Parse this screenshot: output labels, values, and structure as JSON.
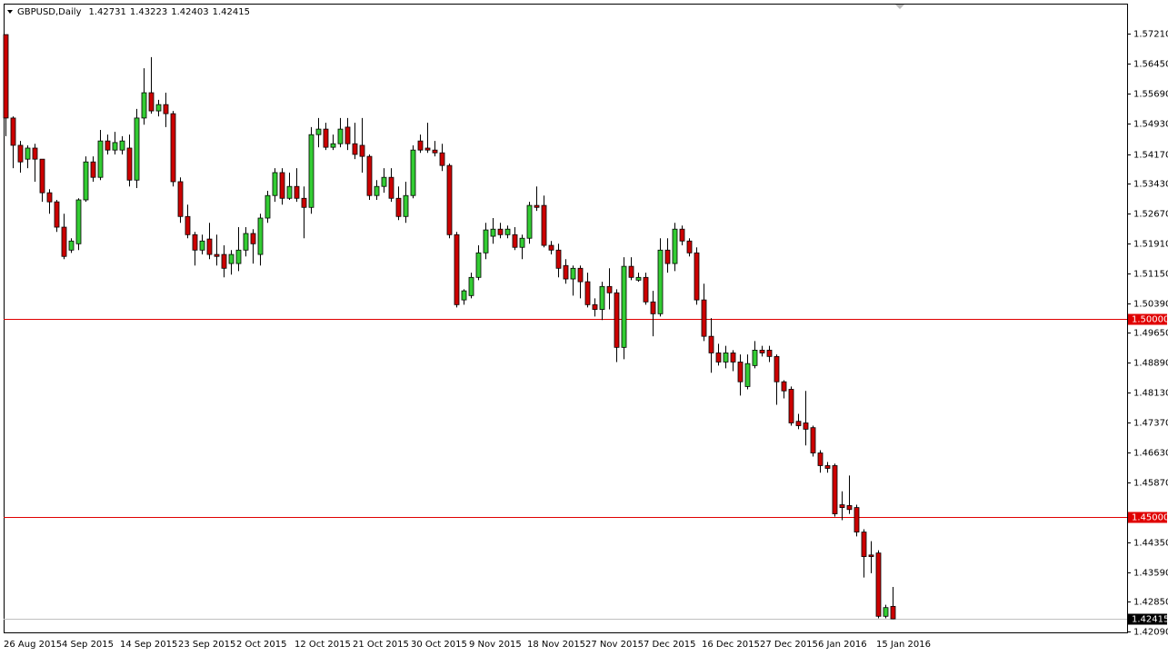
{
  "chart_data": {
    "type": "candlestick",
    "title": "GBPUSD,Daily",
    "categories": [
      "26 Aug 2015",
      null,
      null,
      null,
      null,
      null,
      null,
      null,
      "4 Sep 2015",
      null,
      null,
      null,
      null,
      null,
      null,
      null,
      "14 Sep 2015",
      null,
      null,
      null,
      null,
      null,
      null,
      null,
      "23 Sep 2015",
      null,
      null,
      null,
      null,
      null,
      null,
      null,
      "2 Oct 2015",
      null,
      null,
      null,
      null,
      null,
      null,
      null,
      "12 Oct 2015",
      null,
      null,
      null,
      null,
      null,
      null,
      null,
      "21 Oct 2015",
      null,
      null,
      null,
      null,
      null,
      null,
      null,
      "30 Oct 2015",
      null,
      null,
      null,
      null,
      null,
      null,
      null,
      "9 Nov 2015",
      null,
      null,
      null,
      null,
      null,
      null,
      null,
      "18 Nov 2015",
      null,
      null,
      null,
      null,
      null,
      null,
      null,
      "27 Nov 2015",
      null,
      null,
      null,
      null,
      null,
      null,
      null,
      "7 Dec 2015",
      null,
      null,
      null,
      null,
      null,
      null,
      null,
      "16 Dec 2015",
      null,
      null,
      null,
      null,
      null,
      null,
      null,
      "27 Dec 2015",
      null,
      null,
      null,
      null,
      null,
      null,
      null,
      "6 Jan 2016",
      null,
      null,
      null,
      null,
      null,
      null,
      null,
      "15 Jan 2016",
      null,
      null
    ],
    "open": [
      1.5719,
      1.5508,
      1.5439,
      1.5404,
      1.5432,
      1.5404,
      1.5319,
      1.5296,
      1.5232,
      1.5174,
      1.519,
      1.5301,
      1.5397,
      1.5358,
      1.545,
      1.5427,
      1.5427,
      1.5432,
      1.5351,
      1.5508,
      1.5572,
      1.5526,
      1.5542,
      1.5519,
      1.5347,
      1.5259,
      1.5213,
      1.5174,
      1.5202,
      1.5163,
      1.5163,
      1.514,
      1.514,
      1.5174,
      1.5216,
      1.5163,
      1.5255,
      1.5312,
      1.537,
      1.5305,
      1.5335,
      1.5305,
      1.5282,
      1.5466,
      1.548,
      1.5434,
      1.5443,
      1.5485,
      1.5443,
      1.5439,
      1.5411,
      1.5312,
      1.5335,
      1.5358,
      1.5305,
      1.5259,
      1.5312,
      1.545,
      1.5432,
      1.5427,
      1.542,
      1.5388,
      1.5213,
      1.5048,
      1.5059,
      1.5105,
      1.5167,
      1.5209,
      1.5227,
      1.5213,
      1.5213,
      1.5181,
      1.5204,
      1.5287,
      1.5287,
      1.5186,
      1.5174,
      1.5135,
      1.5101,
      1.5128,
      1.5094,
      1.5036,
      1.5024,
      1.5082,
      1.5066,
      1.4928,
      1.5133,
      1.5098,
      1.5105,
      1.5043,
      1.5013,
      1.5174,
      1.514,
      1.5227,
      1.5197,
      1.5167,
      1.5048,
      1.4956,
      1.4914,
      1.4891,
      1.4914,
      1.4891,
      1.4829,
      1.4882,
      1.4921,
      1.4921,
      1.4905,
      1.4841,
      1.4822,
      1.4741,
      1.4737,
      1.4725,
      1.4661,
      1.4629,
      1.4629,
      1.453,
      1.4528,
      1.4523,
      1.4461,
      1.4403,
      1.4408,
      1.4248,
      1.42731
    ],
    "high": [
      1.5719,
      1.5512,
      1.545,
      1.5439,
      1.5443,
      1.5404,
      1.5328,
      1.5301,
      1.5266,
      1.5204,
      1.5305,
      1.5411,
      1.5411,
      1.5478,
      1.5466,
      1.5473,
      1.5462,
      1.5466,
      1.5531,
      1.5634,
      1.5662,
      1.5554,
      1.5572,
      1.5526,
      1.5358,
      1.5289,
      1.522,
      1.5213,
      1.5243,
      1.5213,
      1.5186,
      1.5174,
      1.5232,
      1.5232,
      1.5227,
      1.5266,
      1.5324,
      1.5381,
      1.5381,
      1.537,
      1.5381,
      1.5335,
      1.5485,
      1.5508,
      1.5496,
      1.5466,
      1.5508,
      1.5508,
      1.5496,
      1.5508,
      1.5416,
      1.5351,
      1.5381,
      1.5381,
      1.5335,
      1.5347,
      1.5439,
      1.5466,
      1.5496,
      1.545,
      1.5443,
      1.5393,
      1.522,
      1.5075,
      1.5117,
      1.5186,
      1.5243,
      1.5255,
      1.5243,
      1.5236,
      1.5232,
      1.5213,
      1.5296,
      1.5335,
      1.5312,
      1.5197,
      1.519,
      1.5151,
      1.5135,
      1.5135,
      1.5117,
      1.5052,
      1.5094,
      1.5128,
      1.5075,
      1.5156,
      1.5156,
      1.5117,
      1.5117,
      1.5071,
      1.5204,
      1.5204,
      1.5243,
      1.5236,
      1.5204,
      1.5181,
      1.5089,
      1.5002,
      1.4937,
      1.4932,
      1.4921,
      1.491,
      1.491,
      1.4944,
      1.4932,
      1.4932,
      1.491,
      1.4845,
      1.4829,
      1.476,
      1.4818,
      1.473,
      1.4668,
      1.4638,
      1.4634,
      1.4564,
      1.4604,
      1.453,
      1.4468,
      1.4438,
      1.4415,
      1.4277,
      1.43223
    ],
    "low": [
      1.5462,
      1.5381,
      1.537,
      1.5381,
      1.5347,
      1.5296,
      1.5266,
      1.522,
      1.5151,
      1.5167,
      1.5174,
      1.5296,
      1.5347,
      1.5351,
      1.5416,
      1.5416,
      1.5416,
      1.5335,
      1.5331,
      1.5491,
      1.5519,
      1.5512,
      1.5485,
      1.5335,
      1.5243,
      1.5204,
      1.5135,
      1.5163,
      1.5151,
      1.5135,
      1.5105,
      1.5112,
      1.5121,
      1.5158,
      1.514,
      1.5135,
      1.5243,
      1.5296,
      1.5289,
      1.5301,
      1.5296,
      1.5204,
      1.5266,
      1.5434,
      1.5427,
      1.5427,
      1.5434,
      1.5427,
      1.5404,
      1.537,
      1.5301,
      1.5301,
      1.5319,
      1.5296,
      1.525,
      1.5243,
      1.5305,
      1.542,
      1.542,
      1.5411,
      1.5374,
      1.5204,
      1.5029,
      1.5036,
      1.5052,
      1.5098,
      1.5151,
      1.519,
      1.5204,
      1.5204,
      1.5174,
      1.5151,
      1.519,
      1.5273,
      1.5181,
      1.5163,
      1.5105,
      1.5089,
      1.5059,
      1.5052,
      1.5029,
      1.5006,
      1.4997,
      1.5024,
      1.4891,
      1.4898,
      1.5098,
      1.5094,
      1.5036,
      1.4956,
      1.5006,
      1.5117,
      1.5121,
      1.5186,
      1.5158,
      1.5036,
      1.4944,
      1.4864,
      1.4882,
      1.4875,
      1.4868,
      1.4806,
      1.4822,
      1.4875,
      1.4905,
      1.4891,
      1.4783,
      1.4799,
      1.473,
      1.4721,
      1.468,
      1.4652,
      1.4611,
      1.4611,
      1.45,
      1.4491,
      1.4507,
      1.445,
      1.4346,
      1.4357,
      1.4243,
      1.4243,
      1.42403
    ],
    "close": [
      1.5508,
      1.5439,
      1.5397,
      1.5432,
      1.5404,
      1.5319,
      1.5296,
      1.5232,
      1.5158,
      1.5197,
      1.5301,
      1.5397,
      1.5358,
      1.545,
      1.5427,
      1.5446,
      1.545,
      1.5351,
      1.5508,
      1.5572,
      1.5526,
      1.5542,
      1.5519,
      1.5347,
      1.5259,
      1.5213,
      1.5174,
      1.5197,
      1.5163,
      1.5158,
      1.5128,
      1.5163,
      1.5174,
      1.5216,
      1.519,
      1.5255,
      1.5312,
      1.537,
      1.5305,
      1.5335,
      1.5305,
      1.5282,
      1.5466,
      1.548,
      1.5434,
      1.5443,
      1.548,
      1.5443,
      1.5416,
      1.5411,
      1.5312,
      1.5335,
      1.5358,
      1.5305,
      1.5259,
      1.5312,
      1.5427,
      1.5427,
      1.5427,
      1.542,
      1.5388,
      1.5213,
      1.5036,
      1.5071,
      1.5105,
      1.5167,
      1.5225,
      1.5227,
      1.5213,
      1.5227,
      1.5181,
      1.5204,
      1.5287,
      1.5282,
      1.5186,
      1.5174,
      1.5128,
      1.5101,
      1.5128,
      1.5094,
      1.5036,
      1.5024,
      1.5082,
      1.5066,
      1.4928,
      1.5133,
      1.5105,
      1.5105,
      1.5043,
      1.5013,
      1.5174,
      1.514,
      1.5227,
      1.5197,
      1.5167,
      1.5048,
      1.4956,
      1.4914,
      1.4891,
      1.4914,
      1.4891,
      1.4841,
      1.4887,
      1.4921,
      1.4914,
      1.4905,
      1.4841,
      1.4818,
      1.4737,
      1.473,
      1.4721,
      1.4661,
      1.4629,
      1.4622,
      1.4507,
      1.4523,
      1.4518,
      1.4461,
      1.4399,
      1.4399,
      1.4248,
      1.427,
      1.42415
    ],
    "up_color": "#33cc33",
    "down_color": "#cc0000",
    "wick_color": "#000000",
    "ylim": [
      1.4205,
      1.5795
    ],
    "yticks": [
      {
        "value": 1.5721,
        "label": "1.57210"
      },
      {
        "value": 1.5645,
        "label": "1.56450"
      },
      {
        "value": 1.5569,
        "label": "1.55690"
      },
      {
        "value": 1.5493,
        "label": "1.54930"
      },
      {
        "value": 1.5417,
        "label": "1.54170"
      },
      {
        "value": 1.5343,
        "label": "1.53430"
      },
      {
        "value": 1.5267,
        "label": "1.52670"
      },
      {
        "value": 1.5191,
        "label": "1.51910"
      },
      {
        "value": 1.5115,
        "label": "1.51150"
      },
      {
        "value": 1.5039,
        "label": "1.50390"
      },
      {
        "value": 1.4965,
        "label": "1.49650"
      },
      {
        "value": 1.4889,
        "label": "1.48890"
      },
      {
        "value": 1.4813,
        "label": "1.48130"
      },
      {
        "value": 1.4737,
        "label": "1.47370"
      },
      {
        "value": 1.4663,
        "label": "1.46630"
      },
      {
        "value": 1.4587,
        "label": "1.45870"
      },
      {
        "value": 1.4435,
        "label": "1.44350"
      },
      {
        "value": 1.4359,
        "label": "1.43590"
      },
      {
        "value": 1.4285,
        "label": "1.42850"
      },
      {
        "value": 1.4209,
        "label": "1.42090"
      }
    ],
    "hlines": [
      {
        "value": 1.5,
        "label": "1.50000",
        "color": "#e00000"
      },
      {
        "value": 1.45,
        "label": "1.45000",
        "color": "#e00000"
      }
    ],
    "grid": false
  }
}
